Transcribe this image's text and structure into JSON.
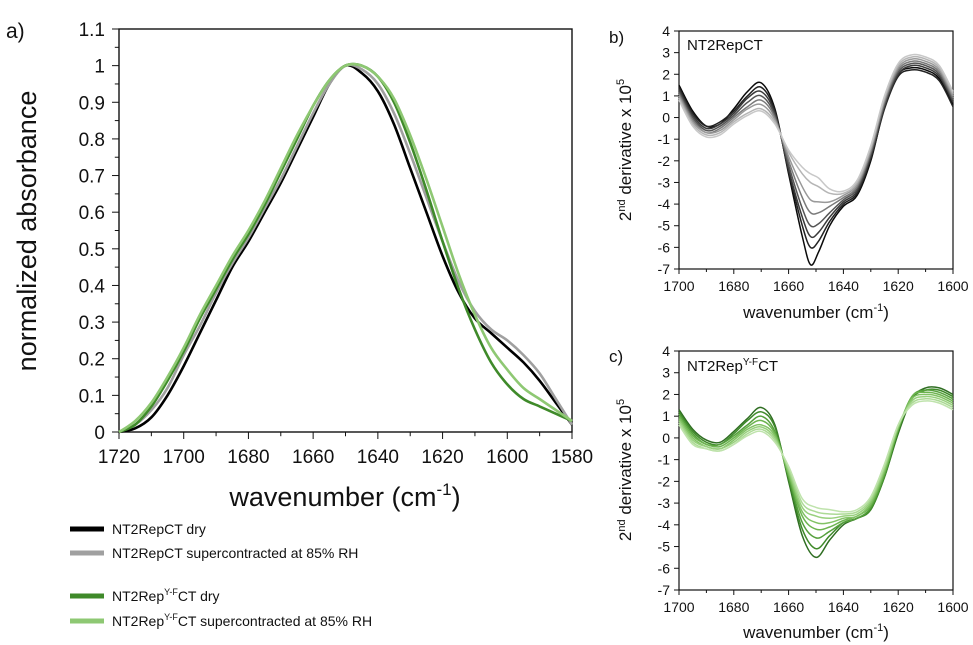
{
  "chart_data": [
    {
      "panel": "a)",
      "type": "line",
      "xlabel": "wavenumber (cm",
      "xlabel_sup": "-1",
      "xlabel_close": ")",
      "ylabel": "normalized absorbance",
      "xlim": [
        1720,
        1580
      ],
      "ylim": [
        0,
        1.1
      ],
      "x_ticks": [
        "1720",
        "1700",
        "1680",
        "1660",
        "1640",
        "1620",
        "1600",
        "1580"
      ],
      "y_ticks": [
        "0",
        "0.1",
        "0.2",
        "0.3",
        "0.4",
        "0.5",
        "0.6",
        "0.7",
        "0.8",
        "0.9",
        "1",
        "1.1"
      ],
      "legend": [
        {
          "pre": "NT2RepCT dry",
          "sup": "",
          "post": "",
          "color": "#000000"
        },
        {
          "pre": "NT2RepCT supercontracted at 85% RH",
          "sup": "",
          "post": "",
          "color": "#a0a0a0"
        },
        {
          "pre": "NT2Rep",
          "sup": "Y-F",
          "post": "CT dry",
          "color": "#3f8a2a"
        },
        {
          "pre": "NT2Rep",
          "sup": "Y-F",
          "post": "CT supercontracted at 85% RH",
          "color": "#8ec873"
        }
      ],
      "series": [
        {
          "color": "#000000",
          "x": [
            1720,
            1715,
            1710,
            1705,
            1700,
            1695,
            1690,
            1685,
            1680,
            1675,
            1670,
            1665,
            1660,
            1655,
            1650,
            1645,
            1640,
            1635,
            1630,
            1625,
            1620,
            1615,
            1610,
            1605,
            1600,
            1595,
            1590,
            1585,
            1580
          ],
          "y": [
            0,
            0.01,
            0.04,
            0.1,
            0.18,
            0.27,
            0.36,
            0.45,
            0.52,
            0.6,
            0.68,
            0.77,
            0.86,
            0.95,
            1.0,
            0.98,
            0.93,
            0.84,
            0.72,
            0.6,
            0.48,
            0.38,
            0.31,
            0.27,
            0.23,
            0.19,
            0.14,
            0.08,
            0.02
          ]
        },
        {
          "color": "#a0a0a0",
          "x": [
            1720,
            1715,
            1710,
            1705,
            1700,
            1695,
            1690,
            1685,
            1680,
            1675,
            1670,
            1665,
            1660,
            1655,
            1650,
            1645,
            1640,
            1635,
            1630,
            1625,
            1620,
            1615,
            1610,
            1605,
            1600,
            1595,
            1590,
            1585,
            1580
          ],
          "y": [
            0,
            0.02,
            0.06,
            0.12,
            0.21,
            0.29,
            0.38,
            0.46,
            0.53,
            0.61,
            0.69,
            0.78,
            0.87,
            0.95,
            1.0,
            0.99,
            0.95,
            0.87,
            0.76,
            0.64,
            0.52,
            0.41,
            0.33,
            0.28,
            0.25,
            0.21,
            0.16,
            0.09,
            0.02
          ]
        },
        {
          "color": "#3f8a2a",
          "x": [
            1720,
            1715,
            1710,
            1705,
            1700,
            1695,
            1690,
            1685,
            1680,
            1675,
            1670,
            1665,
            1660,
            1655,
            1650,
            1645,
            1640,
            1635,
            1630,
            1625,
            1620,
            1615,
            1610,
            1605,
            1600,
            1595,
            1590,
            1585,
            1580
          ],
          "y": [
            0,
            0.02,
            0.07,
            0.14,
            0.22,
            0.31,
            0.39,
            0.47,
            0.54,
            0.62,
            0.71,
            0.8,
            0.89,
            0.96,
            1.0,
            1.0,
            0.97,
            0.9,
            0.79,
            0.66,
            0.52,
            0.39,
            0.28,
            0.19,
            0.13,
            0.09,
            0.07,
            0.05,
            0.03
          ]
        },
        {
          "color": "#8ec873",
          "x": [
            1720,
            1715,
            1710,
            1705,
            1700,
            1695,
            1690,
            1685,
            1680,
            1675,
            1670,
            1665,
            1660,
            1655,
            1650,
            1645,
            1640,
            1635,
            1630,
            1625,
            1620,
            1615,
            1610,
            1605,
            1600,
            1595,
            1590,
            1585,
            1580
          ],
          "y": [
            0,
            0.03,
            0.08,
            0.15,
            0.23,
            0.32,
            0.4,
            0.48,
            0.55,
            0.63,
            0.72,
            0.81,
            0.89,
            0.96,
            1.0,
            1.0,
            0.97,
            0.91,
            0.81,
            0.69,
            0.56,
            0.43,
            0.32,
            0.23,
            0.17,
            0.12,
            0.09,
            0.06,
            0.03
          ]
        }
      ]
    },
    {
      "panel": "b)",
      "type": "line",
      "series_label_pre": "NT2RepCT",
      "series_label_sup": "",
      "series_label_post": "",
      "xlabel": "wavenumber (cm",
      "xlabel_sup": "-1",
      "xlabel_close": ")",
      "ylabel_pre": "2",
      "ylabel_sup1": "nd",
      "ylabel_mid": " derivative x 10",
      "ylabel_sup2": "5",
      "xlim": [
        1700,
        1600
      ],
      "ylim": [
        -7,
        4
      ],
      "x_ticks": [
        "1700",
        "1680",
        "1660",
        "1640",
        "1620",
        "1600"
      ],
      "y_ticks": [
        "-7",
        "-6",
        "-5",
        "-4",
        "-3",
        "-2",
        "-1",
        "0",
        "1",
        "2",
        "3",
        "4"
      ],
      "x": [
        1700,
        1695,
        1690,
        1685,
        1680,
        1675,
        1670,
        1665,
        1660,
        1655,
        1652,
        1649,
        1645,
        1640,
        1635,
        1630,
        1625,
        1620,
        1615,
        1610,
        1605,
        1600
      ],
      "series": [
        {
          "color": "#0a0a0a",
          "y": [
            1.5,
            0.3,
            -0.4,
            -0.3,
            0.4,
            1.2,
            1.6,
            0.4,
            -2.6,
            -5.5,
            -6.8,
            -6.2,
            -5.0,
            -4.1,
            -3.6,
            -2.0,
            0.5,
            2.0,
            2.3,
            2.2,
            1.8,
            0.6
          ]
        },
        {
          "color": "#222222",
          "y": [
            1.4,
            0.2,
            -0.4,
            -0.2,
            0.3,
            1.0,
            1.4,
            0.3,
            -2.5,
            -5.0,
            -6.0,
            -5.7,
            -4.8,
            -4.0,
            -3.5,
            -1.9,
            0.4,
            1.9,
            2.2,
            2.1,
            1.7,
            0.5
          ]
        },
        {
          "color": "#3a3a3a",
          "y": [
            1.3,
            0.1,
            -0.5,
            -0.3,
            0.2,
            0.9,
            1.2,
            0.2,
            -2.4,
            -4.6,
            -5.5,
            -5.3,
            -4.6,
            -3.9,
            -3.4,
            -1.8,
            0.5,
            2.0,
            2.4,
            2.3,
            1.9,
            0.7
          ]
        },
        {
          "color": "#555555",
          "y": [
            1.2,
            0.0,
            -0.6,
            -0.4,
            0.1,
            0.7,
            1.0,
            0.1,
            -2.2,
            -4.2,
            -5.0,
            -4.9,
            -4.4,
            -3.8,
            -3.3,
            -1.7,
            0.6,
            2.1,
            2.5,
            2.4,
            2.0,
            0.8
          ]
        },
        {
          "color": "#7a7a7a",
          "y": [
            1.1,
            -0.1,
            -0.7,
            -0.5,
            0.0,
            0.5,
            0.8,
            0.0,
            -2.0,
            -3.7,
            -4.4,
            -4.4,
            -4.1,
            -3.7,
            -3.2,
            -1.6,
            0.7,
            2.2,
            2.6,
            2.5,
            2.1,
            0.9
          ]
        },
        {
          "color": "#999999",
          "y": [
            1.0,
            -0.2,
            -0.7,
            -0.6,
            -0.1,
            0.4,
            0.6,
            -0.1,
            -1.8,
            -3.2,
            -3.8,
            -3.9,
            -3.9,
            -3.6,
            -3.1,
            -1.5,
            0.8,
            2.3,
            2.7,
            2.6,
            2.2,
            1.0
          ]
        },
        {
          "color": "#b5b5b5",
          "y": [
            0.9,
            -0.3,
            -0.8,
            -0.7,
            -0.2,
            0.2,
            0.4,
            -0.2,
            -1.6,
            -2.6,
            -3.0,
            -3.2,
            -3.5,
            -3.5,
            -3.0,
            -1.4,
            0.9,
            2.4,
            2.8,
            2.7,
            2.3,
            1.1
          ]
        },
        {
          "color": "#c8c8c8",
          "y": [
            0.8,
            -0.4,
            -0.9,
            -0.8,
            -0.3,
            0.1,
            0.3,
            -0.3,
            -1.5,
            -2.3,
            -2.6,
            -2.8,
            -3.3,
            -3.4,
            -2.9,
            -1.3,
            1.0,
            2.5,
            2.9,
            2.8,
            2.4,
            1.2
          ]
        }
      ]
    },
    {
      "panel": "c)",
      "type": "line",
      "series_label_pre": "NT2Rep",
      "series_label_sup": "Y-F",
      "series_label_post": "CT",
      "xlabel": "wavenumber (cm",
      "xlabel_sup": "-1",
      "xlabel_close": ")",
      "ylabel_pre": "2",
      "ylabel_sup1": "nd",
      "ylabel_mid": " derivative x 10",
      "ylabel_sup2": "5",
      "xlim": [
        1700,
        1600
      ],
      "ylim": [
        -7,
        4
      ],
      "x_ticks": [
        "1700",
        "1680",
        "1660",
        "1640",
        "1620",
        "1600"
      ],
      "y_ticks": [
        "-7",
        "-6",
        "-5",
        "-4",
        "-3",
        "-2",
        "-1",
        "0",
        "1",
        "2",
        "3",
        "4"
      ],
      "x": [
        1700,
        1695,
        1690,
        1685,
        1680,
        1675,
        1670,
        1665,
        1660,
        1655,
        1650,
        1645,
        1640,
        1635,
        1630,
        1625,
        1620,
        1615,
        1610,
        1605,
        1600
      ],
      "series": [
        {
          "color": "#2f6e22",
          "y": [
            1.3,
            0.4,
            -0.1,
            -0.2,
            0.3,
            0.9,
            1.4,
            0.6,
            -2.0,
            -4.5,
            -5.5,
            -4.7,
            -4.0,
            -3.7,
            -3.3,
            -1.8,
            0.2,
            1.8,
            2.3,
            2.3,
            2.0
          ]
        },
        {
          "color": "#3f8a2a",
          "y": [
            1.2,
            0.3,
            -0.2,
            -0.3,
            0.2,
            0.8,
            1.2,
            0.5,
            -1.9,
            -4.2,
            -5.1,
            -4.5,
            -3.9,
            -3.7,
            -3.3,
            -1.8,
            0.3,
            1.8,
            2.2,
            2.2,
            1.9
          ]
        },
        {
          "color": "#55a03c",
          "y": [
            1.1,
            0.2,
            -0.3,
            -0.3,
            0.1,
            0.6,
            1.0,
            0.3,
            -1.8,
            -3.9,
            -4.6,
            -4.3,
            -3.9,
            -3.7,
            -3.2,
            -1.7,
            0.4,
            1.9,
            2.2,
            2.1,
            1.8
          ]
        },
        {
          "color": "#6db450",
          "y": [
            1.0,
            0.1,
            -0.3,
            -0.4,
            0.0,
            0.5,
            0.8,
            0.2,
            -1.7,
            -3.6,
            -4.2,
            -4.1,
            -3.8,
            -3.6,
            -3.1,
            -1.6,
            0.4,
            1.9,
            2.1,
            2.0,
            1.7
          ]
        },
        {
          "color": "#82c265",
          "y": [
            0.9,
            0.0,
            -0.4,
            -0.5,
            -0.1,
            0.4,
            0.6,
            0.1,
            -1.6,
            -3.4,
            -3.9,
            -3.9,
            -3.7,
            -3.6,
            -3.0,
            -1.5,
            0.5,
            1.8,
            2.0,
            1.9,
            1.6
          ]
        },
        {
          "color": "#98d07d",
          "y": [
            0.8,
            -0.1,
            -0.4,
            -0.5,
            -0.2,
            0.3,
            0.5,
            0.0,
            -1.5,
            -3.2,
            -3.6,
            -3.7,
            -3.6,
            -3.5,
            -2.9,
            -1.4,
            0.5,
            1.7,
            1.9,
            1.8,
            1.5
          ]
        },
        {
          "color": "#acda95",
          "y": [
            0.7,
            -0.2,
            -0.5,
            -0.6,
            -0.3,
            0.2,
            0.4,
            -0.1,
            -1.4,
            -3.0,
            -3.4,
            -3.5,
            -3.5,
            -3.4,
            -2.8,
            -1.3,
            0.6,
            1.6,
            1.8,
            1.7,
            1.4
          ]
        },
        {
          "color": "#bfe3ac",
          "y": [
            0.6,
            -0.3,
            -0.5,
            -0.6,
            -0.3,
            0.1,
            0.3,
            -0.2,
            -1.3,
            -2.8,
            -3.2,
            -3.3,
            -3.4,
            -3.3,
            -2.7,
            -1.2,
            0.6,
            1.5,
            1.7,
            1.6,
            1.3
          ]
        }
      ]
    }
  ]
}
